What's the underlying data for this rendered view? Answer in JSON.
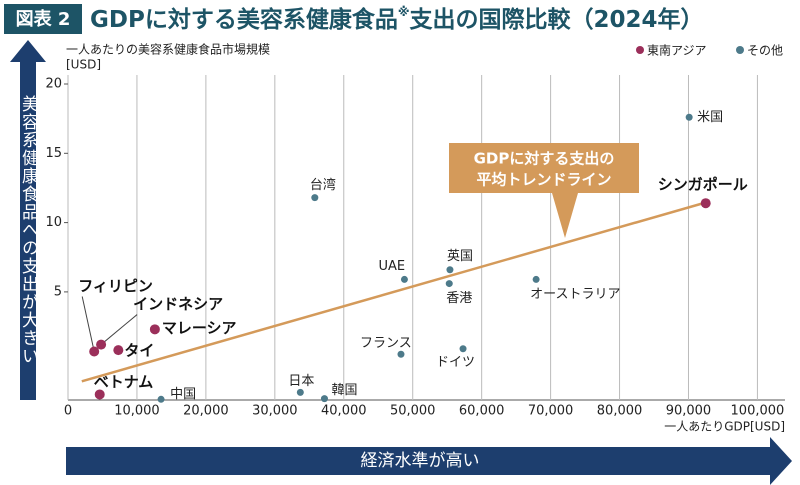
{
  "chart_data": {
    "type": "scatter",
    "figure_label": "図表 2",
    "title": "GDPに対する美容系健康食品",
    "title_mark": "※",
    "title_suffix": "支出の国際比較（2024年）",
    "y_label": "一人あたりの美容系健康食品市場規模",
    "y_unit": "[USD]",
    "x_label": "一人あたりGDP[USD]",
    "y_arrow_label": "美容系健康食品への支出が大きい",
    "x_arrow_label": "経済水準が高い",
    "xlim": [
      0,
      104000
    ],
    "ylim": [
      -2.8,
      20.65
    ],
    "xticks": [
      0,
      {
        "value": 10000,
        "label": "10,000"
      },
      {
        "value": 20000,
        "label": "20,000"
      },
      {
        "value": 30000,
        "label": "30,000"
      },
      {
        "value": 40000,
        "label": "40,000"
      },
      {
        "value": 50000,
        "label": "50,000"
      },
      {
        "value": 60000,
        "label": "60,000"
      },
      {
        "value": 70000,
        "label": "70,000"
      },
      {
        "value": 80000,
        "label": "80,000"
      },
      {
        "value": 90000,
        "label": "90,000"
      },
      {
        "value": 100000,
        "label": "100,000"
      }
    ],
    "yticks": [
      5,
      10,
      15,
      20
    ],
    "grid": true,
    "legend": "top-right",
    "series": [
      {
        "name": "東南アジア",
        "color": "#9b2f5a",
        "labels": [
          "フィリピン",
          "インドネシア",
          "タイ",
          "マレーシア",
          "ベトナム",
          "シンガポール"
        ],
        "x": [
          3800,
          4800,
          7300,
          12600,
          4600,
          92500
        ],
        "values": [
          0.7,
          1.2,
          0.8,
          2.3,
          -2.4,
          11.4
        ]
      },
      {
        "name": "その他",
        "color": "#4d7a8a",
        "labels": [
          "中国",
          "日本",
          "韓国",
          "台湾",
          "UAE",
          "英国",
          "香港",
          "フランス",
          "ドイツ",
          "オーストラリア",
          "米国"
        ],
        "x": [
          13500,
          33700,
          37200,
          35800,
          48800,
          55400,
          55300,
          48300,
          57300,
          67900,
          90100
        ],
        "values": [
          -2.75,
          -2.25,
          -2.7,
          11.8,
          5.9,
          6.6,
          5.6,
          0.5,
          0.9,
          5.9,
          17.6
        ]
      }
    ],
    "trend": {
      "label_line1": "GDPに対する支出の",
      "label_line2": "平均トレンドライン",
      "color": "#d49a5a",
      "x": [
        2000,
        92500
      ],
      "values": [
        -1.45,
        11.45
      ]
    }
  }
}
